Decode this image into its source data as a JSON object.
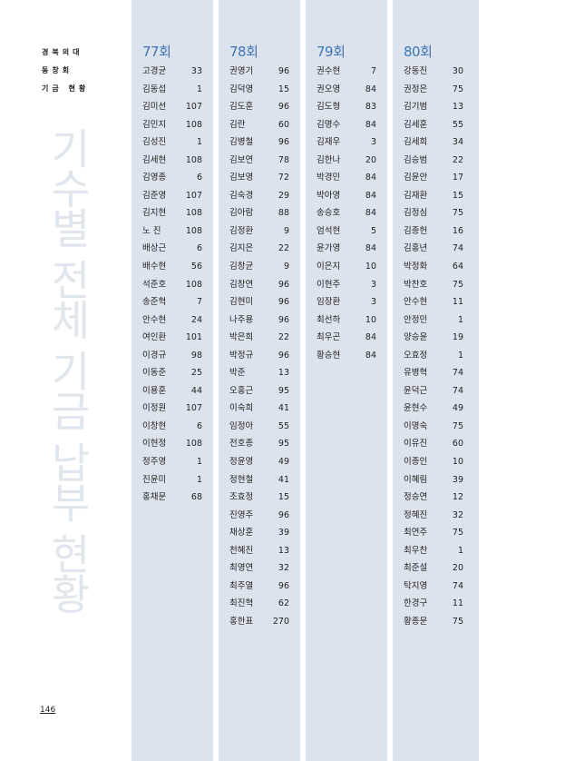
{
  "sidebar": {
    "line1": "경북의대",
    "line2": "동창회",
    "line3": "기금 현황"
  },
  "watermark": "기수별 전체 기금 납부 현황",
  "page_number": "146",
  "colors": {
    "column_bg": "#dde3ec",
    "title": "#3d75b3"
  },
  "columns": [
    {
      "title": "77회",
      "rows": [
        [
          "고경균",
          "33"
        ],
        [
          "김동섭",
          "1"
        ],
        [
          "김미선",
          "107"
        ],
        [
          "김민지",
          "108"
        ],
        [
          "김성진",
          "1"
        ],
        [
          "김세현",
          "108"
        ],
        [
          "김영종",
          "6"
        ],
        [
          "김준영",
          "107"
        ],
        [
          "김지현",
          "108"
        ],
        [
          "노 진",
          "108"
        ],
        [
          "배상근",
          "6"
        ],
        [
          "배수현",
          "56"
        ],
        [
          "석준호",
          "108"
        ],
        [
          "송준혁",
          "7"
        ],
        [
          "안수현",
          "24"
        ],
        [
          "여인환",
          "101"
        ],
        [
          "이경규",
          "98"
        ],
        [
          "이동준",
          "25"
        ],
        [
          "이용훈",
          "44"
        ],
        [
          "이정원",
          "107"
        ],
        [
          "이창현",
          "6"
        ],
        [
          "이현정",
          "108"
        ],
        [
          "정주영",
          "1"
        ],
        [
          "진윤미",
          "1"
        ],
        [
          "홍채문",
          "68"
        ]
      ]
    },
    {
      "title": "78회",
      "rows": [
        [
          "권영기",
          "96"
        ],
        [
          "김덕영",
          "15"
        ],
        [
          "김도훈",
          "96"
        ],
        [
          "김란",
          "60"
        ],
        [
          "김병철",
          "96"
        ],
        [
          "김보연",
          "78"
        ],
        [
          "김보영",
          "72"
        ],
        [
          "김숙경",
          "29"
        ],
        [
          "김아람",
          "88"
        ],
        [
          "김정환",
          "9"
        ],
        [
          "김지은",
          "22"
        ],
        [
          "김창균",
          "9"
        ],
        [
          "김창연",
          "96"
        ],
        [
          "김현미",
          "96"
        ],
        [
          "나주용",
          "96"
        ],
        [
          "박은희",
          "22"
        ],
        [
          "박정규",
          "96"
        ],
        [
          "박준",
          "13"
        ],
        [
          "오홍근",
          "95"
        ],
        [
          "이숙희",
          "41"
        ],
        [
          "임정아",
          "55"
        ],
        [
          "전호종",
          "95"
        ],
        [
          "정윤영",
          "49"
        ],
        [
          "정현철",
          "41"
        ],
        [
          "조효정",
          "15"
        ],
        [
          "진영주",
          "96"
        ],
        [
          "채상훈",
          "39"
        ],
        [
          "천혜진",
          "13"
        ],
        [
          "최영연",
          "32"
        ],
        [
          "최주열",
          "96"
        ],
        [
          "최진혁",
          "62"
        ],
        [
          "홍한표",
          "270"
        ]
      ]
    },
    {
      "title": "79회",
      "rows": [
        [
          "권수현",
          "7"
        ],
        [
          "권오영",
          "84"
        ],
        [
          "김도형",
          "83"
        ],
        [
          "김명수",
          "84"
        ],
        [
          "김재우",
          "3"
        ],
        [
          "김한나",
          "20"
        ],
        [
          "박경민",
          "84"
        ],
        [
          "박아영",
          "84"
        ],
        [
          "송승호",
          "84"
        ],
        [
          "엄석현",
          "5"
        ],
        [
          "윤가영",
          "84"
        ],
        [
          "이은지",
          "10"
        ],
        [
          "이현주",
          "3"
        ],
        [
          "임장환",
          "3"
        ],
        [
          "최선하",
          "10"
        ],
        [
          "최우곤",
          "84"
        ],
        [
          "황승현",
          "84"
        ]
      ]
    },
    {
      "title": "80회",
      "rows": [
        [
          "강동진",
          "30"
        ],
        [
          "권정은",
          "75"
        ],
        [
          "김기범",
          "13"
        ],
        [
          "김세훈",
          "55"
        ],
        [
          "김세희",
          "34"
        ],
        [
          "김승범",
          "22"
        ],
        [
          "김윤안",
          "17"
        ],
        [
          "김재환",
          "15"
        ],
        [
          "김정심",
          "75"
        ],
        [
          "김종헌",
          "16"
        ],
        [
          "김홍년",
          "74"
        ],
        [
          "박정화",
          "64"
        ],
        [
          "박찬호",
          "75"
        ],
        [
          "안수현",
          "11"
        ],
        [
          "안정민",
          "1"
        ],
        [
          "양승윤",
          "19"
        ],
        [
          "오효정",
          "1"
        ],
        [
          "유병혁",
          "74"
        ],
        [
          "윤덕근",
          "74"
        ],
        [
          "윤현수",
          "49"
        ],
        [
          "이명숙",
          "75"
        ],
        [
          "이유진",
          "60"
        ],
        [
          "이종인",
          "10"
        ],
        [
          "이혜림",
          "39"
        ],
        [
          "정승연",
          "12"
        ],
        [
          "정혜진",
          "32"
        ],
        [
          "최연주",
          "75"
        ],
        [
          "최우찬",
          "1"
        ],
        [
          "최준설",
          "20"
        ],
        [
          "탁지영",
          "74"
        ],
        [
          "한경구",
          "11"
        ],
        [
          "황종문",
          "75"
        ]
      ]
    }
  ]
}
